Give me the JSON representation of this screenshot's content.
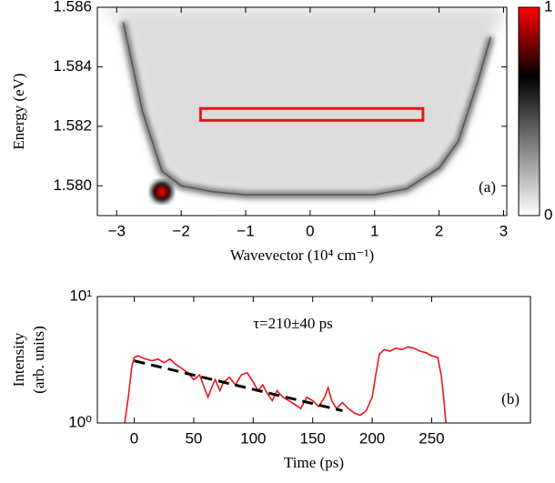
{
  "chart_data": [
    {
      "type": "heatmap",
      "xlabel": "Wavevector (10⁴ cm⁻¹)",
      "ylabel": "Energy (eV)",
      "panel_label": "(a)",
      "xlim": [
        -3.3,
        3.05
      ],
      "ylim": [
        1.579,
        1.586
      ],
      "xticks": [
        {
          "value": -3,
          "label": "−3"
        },
        {
          "value": -2,
          "label": "−2"
        },
        {
          "value": -1,
          "label": "−1"
        },
        0,
        1,
        2,
        3
      ],
      "yticks": [
        {
          "value": 1.58,
          "label": "1.580"
        },
        1.582,
        1.584,
        1.586
      ],
      "curve": {
        "x": [
          -2.9,
          -2.6,
          -2.3,
          -2,
          -1.5,
          -1,
          -0.5,
          0,
          0.5,
          1,
          1.5,
          2,
          2.3,
          2.6,
          2.8
        ],
        "y": [
          1.5855,
          1.5825,
          1.5805,
          1.58,
          1.5798,
          1.5797,
          1.5797,
          1.5797,
          1.5797,
          1.5797,
          1.5799,
          1.5806,
          1.5815,
          1.5835,
          1.585
        ]
      },
      "peak": {
        "x": -2.3,
        "y": 1.5798
      },
      "highlight_box": {
        "x": [
          -1.7,
          1.75
        ],
        "y": [
          1.5822,
          1.5826
        ],
        "color": "#e8171b"
      },
      "colorbar": {
        "lim": [
          0,
          1
        ],
        "ticks": [
          0,
          1
        ],
        "colors": [
          "#ffffff",
          "#808080",
          "#000000",
          "#ff0000"
        ]
      }
    },
    {
      "type": "line",
      "log_y": true,
      "xlabel": "Time (ps)",
      "ylabel": [
        "Intensity",
        "(arb. units)"
      ],
      "panel_label": "(b)",
      "annotation": "τ=210±40 ps",
      "xlim": [
        -31,
        333
      ],
      "ylim": [
        1,
        10
      ],
      "xticks": [
        0,
        50,
        100,
        150,
        200,
        250
      ],
      "yticks": [
        {
          "value": 1,
          "label": "10⁰"
        },
        {
          "value": 10,
          "label": "10¹"
        }
      ],
      "series": [
        {
          "color": "#e8171b",
          "dash": false,
          "x": [
            -8,
            -5,
            -2,
            0,
            3,
            6,
            10,
            15,
            20,
            25,
            30,
            35,
            40,
            45,
            50,
            55,
            58,
            62,
            65,
            68,
            72,
            75,
            80,
            85,
            90,
            95,
            100,
            104,
            108,
            112,
            116,
            120,
            125,
            130,
            135,
            140,
            145,
            150,
            155,
            160,
            163,
            166,
            170,
            175,
            180,
            185,
            190,
            195,
            200,
            203,
            206,
            210,
            215,
            220,
            225,
            230,
            235,
            240,
            245,
            250,
            255,
            258,
            260,
            262
          ],
          "values": [
            1.0,
            1.6,
            2.8,
            3.3,
            3.4,
            3.3,
            3.2,
            3.1,
            3.2,
            3.0,
            3.2,
            2.9,
            2.7,
            2.5,
            2.2,
            2.4,
            2.0,
            1.6,
            1.9,
            2.2,
            1.8,
            2.1,
            2.3,
            2.0,
            2.4,
            2.5,
            2.1,
            1.8,
            2.0,
            1.7,
            1.5,
            1.8,
            1.6,
            1.5,
            1.4,
            1.3,
            1.6,
            1.5,
            1.35,
            1.6,
            1.9,
            1.5,
            1.3,
            1.45,
            1.3,
            1.2,
            1.15,
            1.25,
            1.6,
            2.4,
            3.5,
            3.8,
            3.7,
            3.9,
            3.8,
            4.0,
            3.9,
            3.7,
            3.6,
            3.4,
            3.3,
            2.4,
            1.6,
            1.0
          ]
        },
        {
          "color": "#000000",
          "dash": true,
          "x": [
            0,
            175
          ],
          "values": [
            3.1,
            1.25
          ]
        }
      ]
    }
  ]
}
